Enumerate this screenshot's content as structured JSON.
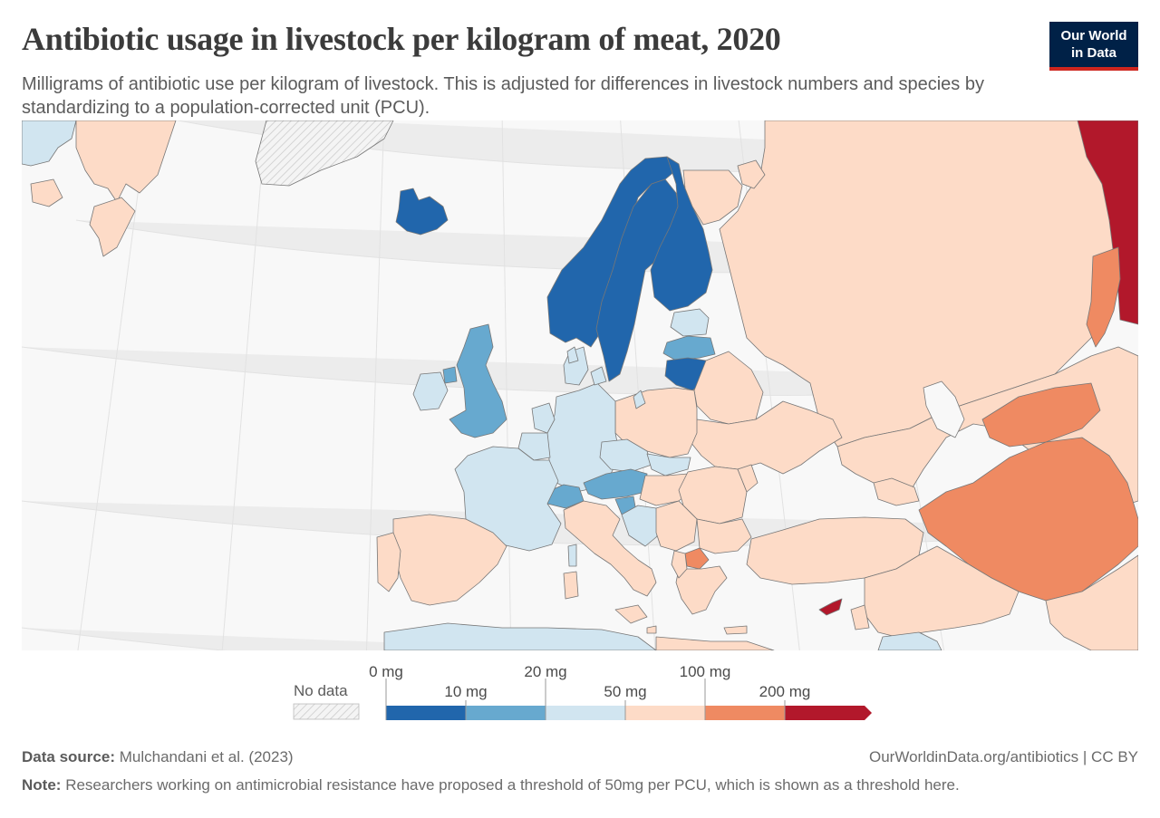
{
  "header": {
    "title": "Antibiotic usage in livestock per kilogram of meat, 2020",
    "subtitle": "Milligrams of antibiotic use per kilogram of livestock. This is adjusted for differences in livestock numbers and species by standardizing to a population-corrected unit (PCU)."
  },
  "logo": {
    "line1": "Our World",
    "line2": "in Data"
  },
  "legend": {
    "no_data_label": "No data",
    "bins": [
      {
        "label_top": "0 mg",
        "color": "#2166ac"
      },
      {
        "label_bottom": "10 mg",
        "color": "#67a9cf"
      },
      {
        "label_top": "20 mg",
        "color": "#d1e5f0"
      },
      {
        "label_bottom": "50 mg",
        "color": "#fddbc7"
      },
      {
        "label_top": "100 mg",
        "color": "#ef8a62"
      },
      {
        "label_bottom": "200 mg",
        "color": "#b2182b"
      }
    ]
  },
  "colors": {
    "very_low": "#2166ac",
    "low": "#67a9cf",
    "mid_low": "#d1e5f0",
    "mid_high": "#fddbc7",
    "high": "#ef8a62",
    "very_high": "#b2182b",
    "no_data": "#ececec",
    "ocean": "#f8f8f8",
    "border": "#777777"
  },
  "map_regions": [
    {
      "name": "iceland",
      "category": "very_low"
    },
    {
      "name": "norway",
      "category": "very_low"
    },
    {
      "name": "sweden",
      "category": "very_low"
    },
    {
      "name": "finland",
      "category": "very_low"
    },
    {
      "name": "lithuania",
      "category": "very_low"
    },
    {
      "name": "latvia",
      "category": "low"
    },
    {
      "name": "estonia",
      "category": "mid_low"
    },
    {
      "name": "united-kingdom",
      "category": "low"
    },
    {
      "name": "ireland",
      "category": "mid_low"
    },
    {
      "name": "austria",
      "category": "low"
    },
    {
      "name": "switzerland",
      "category": "low"
    },
    {
      "name": "slovenia",
      "category": "low"
    },
    {
      "name": "france",
      "category": "mid_low"
    },
    {
      "name": "germany",
      "category": "mid_low"
    },
    {
      "name": "netherlands",
      "category": "mid_low"
    },
    {
      "name": "belgium",
      "category": "mid_low"
    },
    {
      "name": "denmark",
      "category": "mid_low"
    },
    {
      "name": "czechia",
      "category": "mid_low"
    },
    {
      "name": "slovakia",
      "category": "mid_low"
    },
    {
      "name": "croatia",
      "category": "mid_low"
    },
    {
      "name": "north-africa",
      "category": "mid_low"
    },
    {
      "name": "spain",
      "category": "mid_high"
    },
    {
      "name": "portugal",
      "category": "mid_high"
    },
    {
      "name": "italy",
      "category": "mid_high"
    },
    {
      "name": "poland",
      "category": "mid_high"
    },
    {
      "name": "russia",
      "category": "mid_high"
    },
    {
      "name": "belarus",
      "category": "mid_high"
    },
    {
      "name": "ukraine",
      "category": "mid_high"
    },
    {
      "name": "hungary",
      "category": "mid_high"
    },
    {
      "name": "romania",
      "category": "mid_high"
    },
    {
      "name": "serbia",
      "category": "mid_high"
    },
    {
      "name": "bulgaria",
      "category": "mid_high"
    },
    {
      "name": "greece",
      "category": "mid_high"
    },
    {
      "name": "turkey",
      "category": "mid_high"
    },
    {
      "name": "kazakhstan",
      "category": "mid_high"
    },
    {
      "name": "middle-east",
      "category": "mid_high"
    },
    {
      "name": "greenland",
      "category": "mid_high"
    },
    {
      "name": "north-macedonia",
      "category": "high"
    },
    {
      "name": "iran",
      "category": "high"
    },
    {
      "name": "uzbekistan",
      "category": "high"
    },
    {
      "name": "kazakhstan-east",
      "category": "high"
    },
    {
      "name": "cyprus",
      "category": "very_high"
    },
    {
      "name": "russia-east",
      "category": "very_high"
    }
  ],
  "footer": {
    "source_label": "Data source:",
    "source_text": "Mulchandani et al. (2023)",
    "url_text": "OurWorldinData.org/antibiotics | CC BY",
    "note_label": "Note:",
    "note_text": "Researchers working on antimicrobial resistance have proposed a threshold of 50mg per PCU, which is shown as a threshold here."
  }
}
